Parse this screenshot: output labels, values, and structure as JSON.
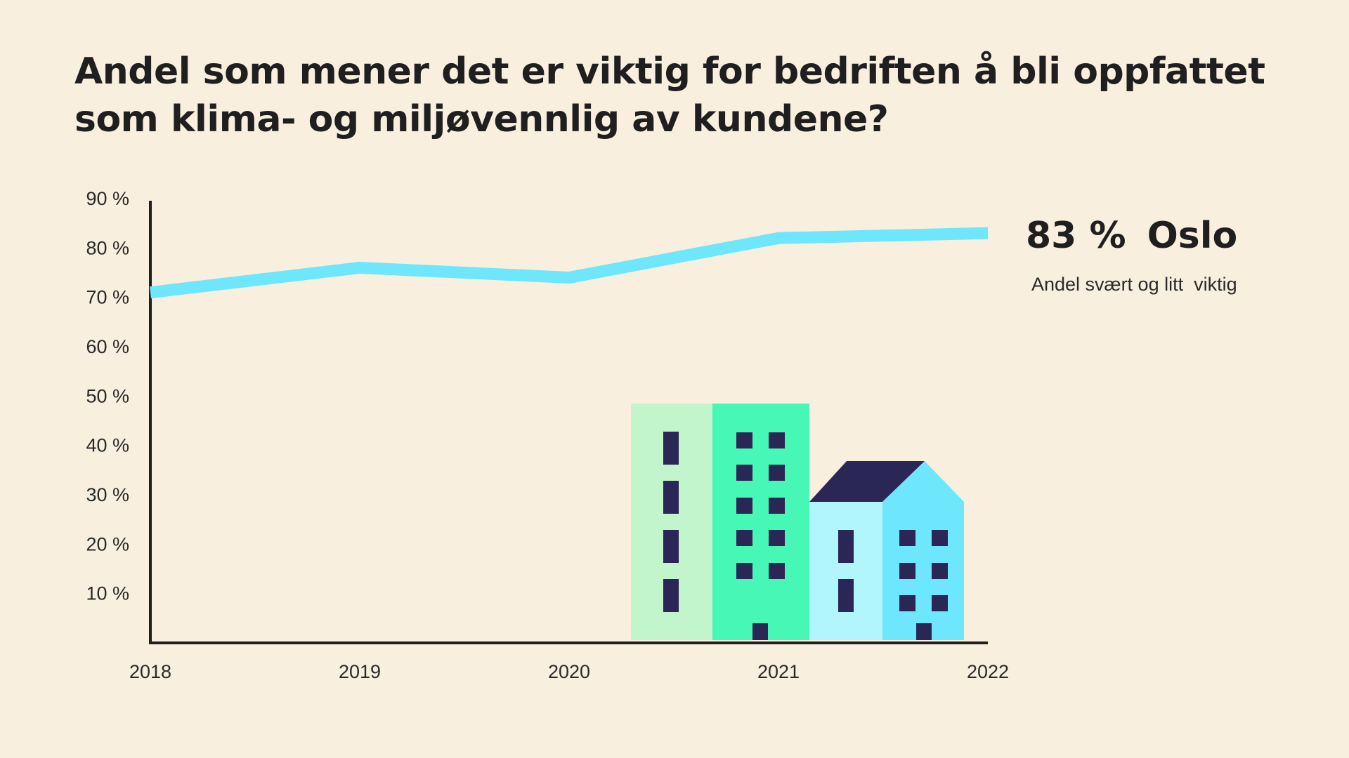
{
  "title": {
    "line1": "Andel som mener det er viktig for bedriften å bli oppfattet",
    "line2": "som klima- og miljøvennlig av kundene?"
  },
  "callout": {
    "value": "83 %",
    "place": "Oslo",
    "subtitle": "Andel svært og litt  viktig"
  },
  "colors": {
    "background": "#f8efdf",
    "line": "#6ee6fb",
    "axis": "#1f1f1f",
    "building_light_green": "#c2f5cb",
    "building_green": "#46f7b5",
    "building_light_blue": "#b1f6fd",
    "building_blue": "#6ee6fb",
    "window_navy": "#2a2756"
  },
  "illustration": "city-buildings",
  "chart_data": {
    "type": "line",
    "title": "Andel som mener det er viktig for bedriften å bli oppfattet som klima- og miljøvennlig av kundene?",
    "x": [
      2018,
      2019,
      2020,
      2021,
      2022
    ],
    "xticks": [
      "2018",
      "2019",
      "2020",
      "2021",
      "2022"
    ],
    "yticks": [
      "10 %",
      "20 %",
      "30 %",
      "40 %",
      "50 %",
      "60 %",
      "70 %",
      "80 %",
      "90 %"
    ],
    "ylim": [
      0,
      90
    ],
    "grid": false,
    "series": [
      {
        "name": "Oslo",
        "values": [
          71,
          76,
          74,
          82,
          83
        ]
      }
    ],
    "annotations": [
      "83 %  Oslo",
      "Andel svært og litt  viktig"
    ]
  }
}
